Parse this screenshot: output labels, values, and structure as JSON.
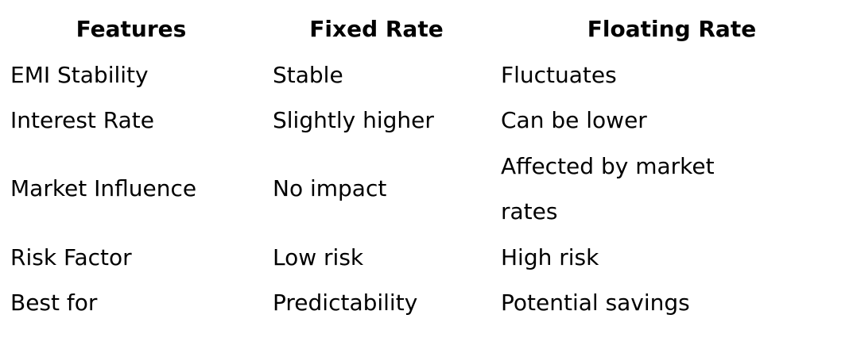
{
  "table": {
    "headers": [
      "Features",
      "Fixed Rate",
      "Floating Rate"
    ],
    "rows": [
      {
        "feature": "EMI Stability",
        "fixed": "Stable",
        "floating": "Fluctuates"
      },
      {
        "feature": "Interest Rate",
        "fixed": "Slightly higher",
        "floating": "Can be lower"
      },
      {
        "feature": "Market Influence",
        "fixed": "No impact",
        "floating": "Affected by market rates"
      },
      {
        "feature": "Risk Factor",
        "fixed": "Low risk",
        "floating": "High risk"
      },
      {
        "feature": "Best for",
        "fixed": "Predictability",
        "floating": "Potential savings"
      }
    ]
  },
  "colors": {
    "text": "#000000",
    "background": "#ffffff"
  }
}
